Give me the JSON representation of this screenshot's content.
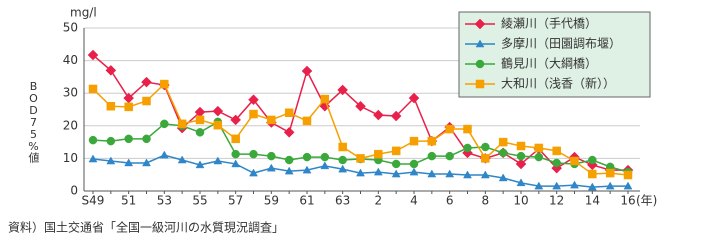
{
  "chart_data": {
    "type": "line",
    "y_unit": "mg/l",
    "y_label": "BOD75%値",
    "x_unit": "(年)",
    "source": "資料）国土交通省「全国一級河川の水質現況調査」",
    "categories": [
      "S49",
      null,
      "51",
      null,
      "53",
      null,
      "55",
      null,
      "57",
      null,
      "59",
      null,
      "61",
      null,
      "63",
      null,
      "2",
      null,
      "4",
      null,
      "6",
      null,
      "8",
      null,
      "10",
      null,
      "12",
      null,
      "14",
      null,
      "16"
    ],
    "ylim": [
      0,
      50
    ],
    "yticks": [
      0,
      10,
      20,
      30,
      40,
      50
    ],
    "grid": true,
    "series": [
      {
        "name": "綾瀬川（手代橋）",
        "color": "#e8204a",
        "marker": "diamond",
        "values": [
          41.7,
          37,
          28.5,
          33.4,
          32.5,
          19.3,
          24.2,
          24.5,
          21.8,
          28,
          21,
          18,
          36.8,
          26,
          31,
          26,
          23.3,
          23,
          28.5,
          15.3,
          19.6,
          11.7,
          10,
          11.7,
          8.3,
          12.9,
          7,
          10.4,
          8,
          6.4,
          6.4
        ]
      },
      {
        "name": "多摩川（田園調布堰）",
        "color": "#2f86c8",
        "marker": "triangle",
        "values": [
          9.8,
          9.2,
          8.6,
          8.6,
          11,
          9.5,
          8,
          9.2,
          8.3,
          5.5,
          7,
          6.1,
          6.4,
          7.7,
          6.7,
          5.5,
          5.8,
          5.2,
          5.8,
          5.2,
          5.2,
          4.9,
          4.9,
          4,
          2.5,
          1.5,
          1.5,
          1.8,
          1.2,
          1.5,
          1.5
        ]
      },
      {
        "name": "鶴見川（大綱橋）",
        "color": "#3aa83a",
        "marker": "circle",
        "values": [
          15.6,
          15.3,
          16,
          16,
          20.6,
          20,
          18,
          21.2,
          11.3,
          11.3,
          10.7,
          9.5,
          10.4,
          10.4,
          9.5,
          9.8,
          9.5,
          8.3,
          8.3,
          10.7,
          10.7,
          13.2,
          13.5,
          11.7,
          10.7,
          10.4,
          8.6,
          8.3,
          9.5,
          7.4,
          5.8
        ]
      },
      {
        "name": "大和川（浅香（新））",
        "color": "#f5a000",
        "marker": "square",
        "values": [
          31.3,
          26,
          25.8,
          27.6,
          32.8,
          20.6,
          21.8,
          20.2,
          16,
          23.6,
          21.8,
          24,
          21.5,
          28.2,
          13.5,
          10,
          11.3,
          12.3,
          15.3,
          15.3,
          19,
          19,
          10,
          15,
          13.8,
          13.2,
          12.3,
          9.2,
          5.2,
          5.5,
          4.9
        ]
      }
    ]
  }
}
